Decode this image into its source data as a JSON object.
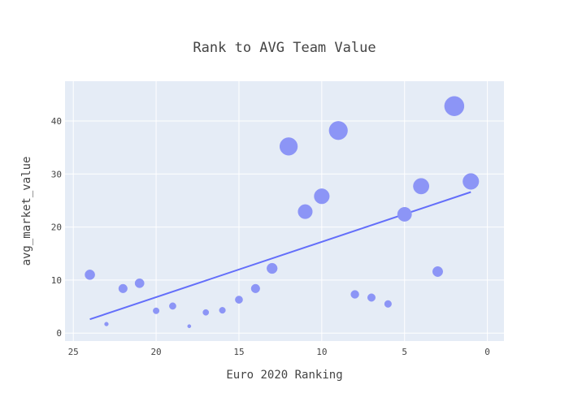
{
  "chart_data": {
    "type": "scatter",
    "title": "Rank to AVG Team Value",
    "xlabel": "Euro 2020 Ranking",
    "ylabel": "avg_market_value",
    "xlim": [
      25.5,
      -1
    ],
    "ylim": [
      -1.5,
      47.5
    ],
    "x_reversed": true,
    "x_ticks": [
      25,
      20,
      15,
      10,
      5,
      0
    ],
    "y_ticks": [
      0,
      10,
      20,
      30,
      40
    ],
    "grid": true,
    "marker_color": "#8c95f6",
    "trendline_color": "#636efa",
    "plot_bg": "#e5ecf6",
    "points": [
      {
        "rank": 1,
        "value": 28.6
      },
      {
        "rank": 2,
        "value": 42.8
      },
      {
        "rank": 3,
        "value": 11.6
      },
      {
        "rank": 4,
        "value": 27.7
      },
      {
        "rank": 5,
        "value": 22.4
      },
      {
        "rank": 6,
        "value": 5.5
      },
      {
        "rank": 7,
        "value": 6.7
      },
      {
        "rank": 8,
        "value": 7.3
      },
      {
        "rank": 9,
        "value": 38.2
      },
      {
        "rank": 10,
        "value": 25.8
      },
      {
        "rank": 11,
        "value": 22.9
      },
      {
        "rank": 12,
        "value": 35.2
      },
      {
        "rank": 13,
        "value": 12.2
      },
      {
        "rank": 14,
        "value": 8.4
      },
      {
        "rank": 15,
        "value": 6.3
      },
      {
        "rank": 16,
        "value": 4.3
      },
      {
        "rank": 17,
        "value": 3.9
      },
      {
        "rank": 18,
        "value": 1.3
      },
      {
        "rank": 19,
        "value": 5.1
      },
      {
        "rank": 20,
        "value": 4.2
      },
      {
        "rank": 21,
        "value": 9.4
      },
      {
        "rank": 22,
        "value": 8.4
      },
      {
        "rank": 23,
        "value": 1.7
      },
      {
        "rank": 24,
        "value": 11.0
      }
    ],
    "trendline": {
      "x": [
        24,
        1
      ],
      "y": [
        2.6,
        26.6
      ]
    }
  }
}
